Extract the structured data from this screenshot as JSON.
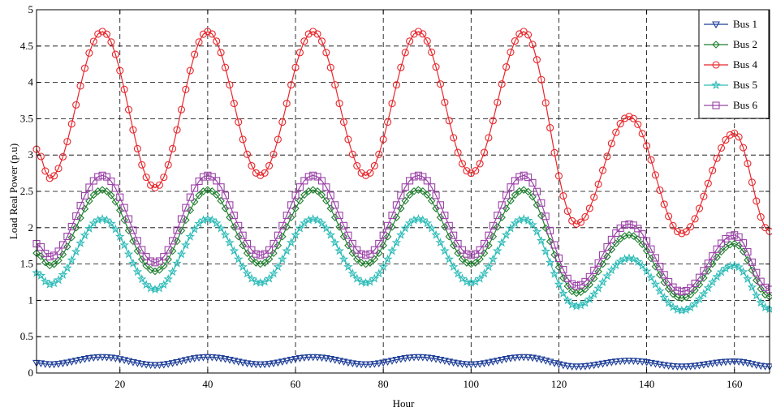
{
  "chart_data": {
    "type": "line",
    "xlabel": "Hour",
    "ylabel": "Load Real Power (p.u)",
    "xlim": [
      1,
      168
    ],
    "ylim": [
      0,
      5
    ],
    "x_ticks": [
      20,
      40,
      60,
      80,
      100,
      120,
      140,
      160
    ],
    "y_ticks": [
      0,
      0.5,
      1,
      1.5,
      2,
      2.5,
      3,
      3.5,
      4,
      4.5,
      5
    ],
    "x_tick_labels": [
      "20",
      "40",
      "60",
      "80",
      "100",
      "120",
      "140",
      "160"
    ],
    "y_tick_labels": [
      "0",
      "0.5",
      "1",
      "1.5",
      "2",
      "2.5",
      "3",
      "3.5",
      "4",
      "4.5",
      "5"
    ],
    "grid": true,
    "legend_position": "top-right",
    "day_peaks": [
      {
        "bus4": 4.7,
        "bus6": 2.72,
        "bus2": 2.52,
        "bus5": 2.12,
        "bus1": 0.22
      },
      {
        "bus4": 4.7,
        "bus6": 2.72,
        "bus2": 2.52,
        "bus5": 2.12,
        "bus1": 0.22
      },
      {
        "bus4": 4.7,
        "bus6": 2.72,
        "bus2": 2.52,
        "bus5": 2.12,
        "bus1": 0.22
      },
      {
        "bus4": 4.7,
        "bus6": 2.72,
        "bus2": 2.52,
        "bus5": 2.12,
        "bus1": 0.22
      },
      {
        "bus4": 4.7,
        "bus6": 2.72,
        "bus2": 2.52,
        "bus5": 2.12,
        "bus1": 0.22
      },
      {
        "bus4": 3.53,
        "bus6": 2.05,
        "bus2": 1.9,
        "bus5": 1.58,
        "bus1": 0.17
      },
      {
        "bus4": 3.3,
        "bus6": 1.9,
        "bus2": 1.78,
        "bus5": 1.48,
        "bus1": 0.16
      }
    ],
    "day_troughs": [
      {
        "bus4": 2.68,
        "bus6": 1.6,
        "bus2": 1.48,
        "bus5": 1.22,
        "bus1": 0.12
      },
      {
        "bus4": 2.55,
        "bus6": 1.52,
        "bus2": 1.4,
        "bus5": 1.15,
        "bus1": 0.11
      },
      {
        "bus4": 2.72,
        "bus6": 1.62,
        "bus2": 1.5,
        "bus5": 1.24,
        "bus1": 0.12
      },
      {
        "bus4": 2.72,
        "bus6": 1.62,
        "bus2": 1.5,
        "bus5": 1.24,
        "bus1": 0.12
      },
      {
        "bus4": 2.75,
        "bus6": 1.62,
        "bus2": 1.5,
        "bus5": 1.24,
        "bus1": 0.12
      },
      {
        "bus4": 2.05,
        "bus6": 1.2,
        "bus2": 1.1,
        "bus5": 0.92,
        "bus1": 0.09
      },
      {
        "bus4": 1.92,
        "bus6": 1.12,
        "bus2": 1.03,
        "bus5": 0.86,
        "bus1": 0.09
      }
    ],
    "day_end": {
      "bus4": 1.95,
      "bus6": 1.15,
      "bus2": 1.05,
      "bus5": 0.88,
      "bus1": 0.09
    },
    "day_start": {
      "bus4": 3.08,
      "bus6": 1.78,
      "bus2": 1.65,
      "bus5": 1.38,
      "bus1": 0.14
    },
    "series": [
      {
        "key": "bus1",
        "name": "Bus 1",
        "color": "#1f3f99",
        "marker": "triangle-down"
      },
      {
        "key": "bus2",
        "name": "Bus 2",
        "color": "#1e7f2e",
        "marker": "diamond"
      },
      {
        "key": "bus4",
        "name": "Bus 4",
        "color": "#e8262b",
        "marker": "circle"
      },
      {
        "key": "bus5",
        "name": "Bus 5",
        "color": "#2fbcb8",
        "marker": "star"
      },
      {
        "key": "bus6",
        "name": "Bus 6",
        "color": "#9b43a8",
        "marker": "square"
      }
    ]
  }
}
